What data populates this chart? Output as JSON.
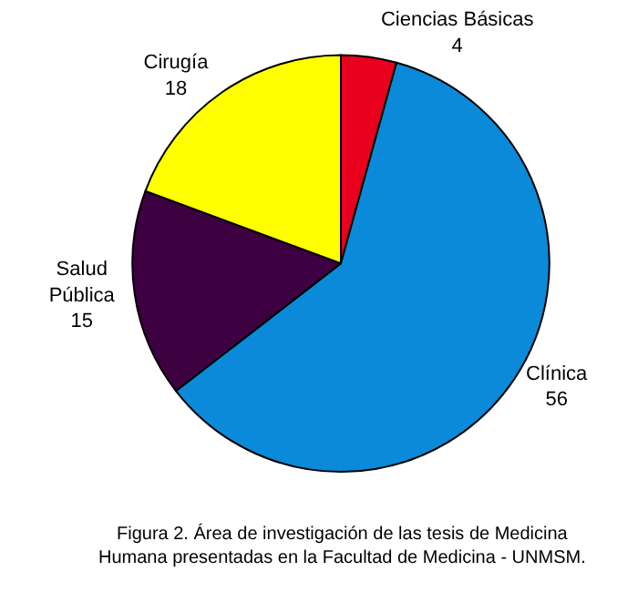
{
  "chart_data": {
    "type": "pie",
    "categories": [
      "Ciencias Básicas",
      "Clínica",
      "Salud Pública",
      "Cirugía"
    ],
    "values": [
      4,
      56,
      15,
      18
    ],
    "colors": [
      "#e8001c",
      "#0a8ad8",
      "#3d0040",
      "#ffff00"
    ],
    "data_labels": true,
    "legend": false,
    "annotations": [
      "Figura 2. Área de investigación de las tesis de Medicina Humana presentadas en la Facultad de Medicina - UNMSM."
    ]
  }
}
